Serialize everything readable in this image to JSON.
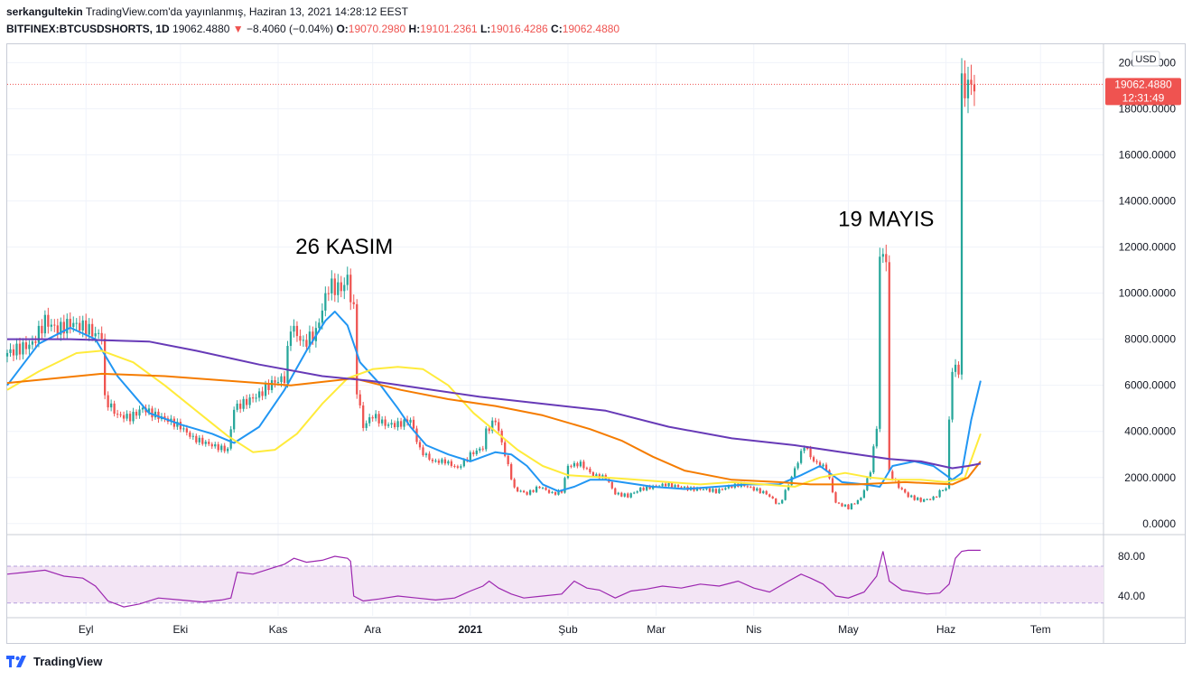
{
  "header": {
    "author": "serkangultekin",
    "published_text": "TradingView.com'da yayınlanmış, Haziran 13, 2021 14:28:12 EEST",
    "symbol": "BITFINEX:BTCUSDSHORTS, 1D",
    "last": "19062.4880",
    "change_arrow": "▼",
    "change": "−8.4060 (−0.04%)",
    "o_label": "O:",
    "o_value": "19070.2980",
    "h_label": "H:",
    "h_value": "19101.2361",
    "l_label": "L:",
    "l_value": "19016.4286",
    "c_label": "C:",
    "c_value": "19062.4880"
  },
  "footer": {
    "brand": "TradingView"
  },
  "colors": {
    "up": "#26a69a",
    "down": "#ef5350",
    "ma_blue": "#2196f3",
    "ma_yellow": "#ffeb3b",
    "ma_orange": "#f57c00",
    "ma_purple": "#673ab7",
    "rsi_line": "#9c27b0",
    "rsi_band": "#f3e5f5",
    "grid": "#f0f3fa",
    "price_tag": "#ef5350"
  },
  "chart_data": {
    "type": "candlestick",
    "currency_label": "USD",
    "y_ticks": [
      "20000.0000",
      "18000.0000",
      "16000.0000",
      "14000.0000",
      "12000.0000",
      "10000.0000",
      "8000.0000",
      "6000.0000",
      "4000.0000",
      "2000.0000",
      "0.0000"
    ],
    "y_tick_values": [
      20000,
      18000,
      16000,
      14000,
      12000,
      10000,
      8000,
      6000,
      4000,
      2000,
      0
    ],
    "ylim": [
      -400,
      20800
    ],
    "x_labels": [
      {
        "label": "Eyl",
        "day": 25
      },
      {
        "label": "Eki",
        "day": 55
      },
      {
        "label": "Kas",
        "day": 86
      },
      {
        "label": "Ara",
        "day": 116
      },
      {
        "label": "2021",
        "day": 147
      },
      {
        "label": "Şub",
        "day": 178
      },
      {
        "label": "Mar",
        "day": 206
      },
      {
        "label": "Nis",
        "day": 237
      },
      {
        "label": "May",
        "day": 267
      },
      {
        "label": "Haz",
        "day": 298
      },
      {
        "label": "Tem",
        "day": 328
      }
    ],
    "x_range_days": [
      0,
      348
    ],
    "last_price_tag": {
      "price": "19062.4880",
      "countdown": "12:31:49",
      "value": 19062.488
    },
    "annotations": [
      {
        "text": "26 KASIM",
        "day": 107,
        "value": 11700
      },
      {
        "text": "19 MAYIS",
        "day": 279,
        "value": 12900
      }
    ],
    "candle_anchors": [
      [
        0,
        7400
      ],
      [
        4,
        7600
      ],
      [
        8,
        7800
      ],
      [
        12,
        8800
      ],
      [
        16,
        8400
      ],
      [
        20,
        8700
      ],
      [
        25,
        8500
      ],
      [
        28,
        8200
      ],
      [
        31,
        5400
      ],
      [
        35,
        4700
      ],
      [
        39,
        4600
      ],
      [
        43,
        5000
      ],
      [
        47,
        4700
      ],
      [
        51,
        4500
      ],
      [
        55,
        4200
      ],
      [
        59,
        3700
      ],
      [
        63,
        3500
      ],
      [
        67,
        3300
      ],
      [
        70,
        3200
      ],
      [
        72,
        5000
      ],
      [
        76,
        5300
      ],
      [
        80,
        5600
      ],
      [
        84,
        6100
      ],
      [
        88,
        6300
      ],
      [
        90,
        8600
      ],
      [
        94,
        7800
      ],
      [
        98,
        8300
      ],
      [
        102,
        10300
      ],
      [
        106,
        10200
      ],
      [
        108,
        10600
      ],
      [
        110,
        9200
      ],
      [
        111,
        5800
      ],
      [
        113,
        4200
      ],
      [
        116,
        4700
      ],
      [
        120,
        4300
      ],
      [
        124,
        4300
      ],
      [
        128,
        4500
      ],
      [
        131,
        3200
      ],
      [
        135,
        2700
      ],
      [
        139,
        2700
      ],
      [
        143,
        2400
      ],
      [
        147,
        3000
      ],
      [
        151,
        3300
      ],
      [
        152,
        4000
      ],
      [
        155,
        4500
      ],
      [
        158,
        3000
      ],
      [
        161,
        1500
      ],
      [
        165,
        1300
      ],
      [
        169,
        1600
      ],
      [
        173,
        1300
      ],
      [
        176,
        1400
      ],
      [
        178,
        2500
      ],
      [
        182,
        2600
      ],
      [
        186,
        2100
      ],
      [
        190,
        2000
      ],
      [
        193,
        1300
      ],
      [
        197,
        1200
      ],
      [
        201,
        1500
      ],
      [
        205,
        1600
      ],
      [
        209,
        1700
      ],
      [
        213,
        1600
      ],
      [
        217,
        1500
      ],
      [
        221,
        1500
      ],
      [
        225,
        1400
      ],
      [
        229,
        1600
      ],
      [
        233,
        1700
      ],
      [
        237,
        1500
      ],
      [
        241,
        1300
      ],
      [
        245,
        800
      ],
      [
        248,
        1700
      ],
      [
        251,
        2700
      ],
      [
        253,
        3400
      ],
      [
        256,
        2700
      ],
      [
        260,
        2400
      ],
      [
        263,
        900
      ],
      [
        267,
        700
      ],
      [
        271,
        1100
      ],
      [
        274,
        2300
      ],
      [
        276,
        4200
      ],
      [
        277,
        11500
      ],
      [
        278,
        11600
      ],
      [
        279,
        11600
      ],
      [
        280,
        2200
      ],
      [
        283,
        1600
      ],
      [
        286,
        1200
      ],
      [
        290,
        1000
      ],
      [
        294,
        1100
      ],
      [
        297,
        1500
      ],
      [
        299,
        4500
      ],
      [
        300,
        6700
      ],
      [
        302,
        6700
      ],
      [
        303,
        18900
      ],
      [
        305,
        19000
      ],
      [
        307,
        19062
      ]
    ],
    "series": [
      {
        "name": "MA short",
        "color": "#2196f3",
        "points": [
          [
            0,
            6000
          ],
          [
            10,
            7800
          ],
          [
            20,
            8500
          ],
          [
            28,
            8000
          ],
          [
            35,
            6400
          ],
          [
            45,
            4800
          ],
          [
            55,
            4300
          ],
          [
            65,
            3900
          ],
          [
            72,
            3500
          ],
          [
            80,
            4200
          ],
          [
            88,
            5800
          ],
          [
            95,
            7500
          ],
          [
            101,
            8800
          ],
          [
            104,
            9200
          ],
          [
            108,
            8600
          ],
          [
            112,
            7000
          ],
          [
            118,
            6100
          ],
          [
            124,
            5000
          ],
          [
            128,
            4200
          ],
          [
            133,
            3400
          ],
          [
            140,
            3000
          ],
          [
            147,
            2700
          ],
          [
            155,
            3100
          ],
          [
            160,
            3000
          ],
          [
            165,
            2500
          ],
          [
            170,
            1700
          ],
          [
            175,
            1400
          ],
          [
            180,
            1600
          ],
          [
            185,
            1900
          ],
          [
            190,
            1900
          ],
          [
            195,
            1800
          ],
          [
            205,
            1600
          ],
          [
            215,
            1500
          ],
          [
            225,
            1600
          ],
          [
            235,
            1700
          ],
          [
            245,
            1700
          ],
          [
            252,
            2100
          ],
          [
            258,
            2500
          ],
          [
            265,
            1800
          ],
          [
            272,
            1700
          ],
          [
            277,
            1600
          ],
          [
            281,
            2500
          ],
          [
            288,
            2700
          ],
          [
            294,
            2500
          ],
          [
            300,
            1900
          ],
          [
            303,
            2200
          ],
          [
            306,
            4500
          ],
          [
            309,
            6200
          ]
        ]
      },
      {
        "name": "MA mid",
        "color": "#ffeb3b",
        "points": [
          [
            0,
            5800
          ],
          [
            10,
            6600
          ],
          [
            22,
            7400
          ],
          [
            30,
            7500
          ],
          [
            40,
            7000
          ],
          [
            50,
            6000
          ],
          [
            60,
            4900
          ],
          [
            70,
            3800
          ],
          [
            78,
            3100
          ],
          [
            85,
            3200
          ],
          [
            92,
            3900
          ],
          [
            100,
            5200
          ],
          [
            108,
            6300
          ],
          [
            116,
            6700
          ],
          [
            124,
            6800
          ],
          [
            132,
            6700
          ],
          [
            140,
            6000
          ],
          [
            148,
            4800
          ],
          [
            155,
            4000
          ],
          [
            162,
            3200
          ],
          [
            170,
            2500
          ],
          [
            178,
            2100
          ],
          [
            190,
            2000
          ],
          [
            200,
            1900
          ],
          [
            210,
            1800
          ],
          [
            220,
            1700
          ],
          [
            230,
            1800
          ],
          [
            240,
            1700
          ],
          [
            250,
            1600
          ],
          [
            258,
            2000
          ],
          [
            266,
            2200
          ],
          [
            274,
            2000
          ],
          [
            281,
            1900
          ],
          [
            290,
            1900
          ],
          [
            298,
            1800
          ],
          [
            304,
            2000
          ],
          [
            309,
            3900
          ]
        ]
      },
      {
        "name": "MA long",
        "color": "#f57c00",
        "points": [
          [
            0,
            6100
          ],
          [
            15,
            6300
          ],
          [
            30,
            6500
          ],
          [
            50,
            6400
          ],
          [
            70,
            6200
          ],
          [
            90,
            6000
          ],
          [
            110,
            6300
          ],
          [
            125,
            5800
          ],
          [
            140,
            5400
          ],
          [
            155,
            5100
          ],
          [
            170,
            4700
          ],
          [
            185,
            4100
          ],
          [
            195,
            3600
          ],
          [
            205,
            2900
          ],
          [
            215,
            2300
          ],
          [
            230,
            1900
          ],
          [
            245,
            1800
          ],
          [
            255,
            1700
          ],
          [
            270,
            1700
          ],
          [
            285,
            1800
          ],
          [
            300,
            1700
          ],
          [
            305,
            2000
          ],
          [
            309,
            2700
          ]
        ]
      },
      {
        "name": "MA very long",
        "color": "#673ab7",
        "points": [
          [
            0,
            8000
          ],
          [
            20,
            8000
          ],
          [
            45,
            7900
          ],
          [
            60,
            7500
          ],
          [
            80,
            6900
          ],
          [
            100,
            6400
          ],
          [
            115,
            6200
          ],
          [
            130,
            5900
          ],
          [
            150,
            5500
          ],
          [
            170,
            5200
          ],
          [
            190,
            4900
          ],
          [
            210,
            4200
          ],
          [
            230,
            3700
          ],
          [
            250,
            3400
          ],
          [
            265,
            3100
          ],
          [
            280,
            2800
          ],
          [
            290,
            2700
          ],
          [
            300,
            2400
          ],
          [
            305,
            2500
          ],
          [
            309,
            2600
          ]
        ]
      }
    ],
    "rsi": {
      "y_ticks": [
        "80.00",
        "40.00"
      ],
      "y_tick_values": [
        80,
        40
      ],
      "band": [
        33,
        70
      ],
      "ylim": [
        20,
        100
      ],
      "points": [
        [
          0,
          62
        ],
        [
          6,
          64
        ],
        [
          12,
          66
        ],
        [
          18,
          60
        ],
        [
          24,
          58
        ],
        [
          28,
          50
        ],
        [
          32,
          35
        ],
        [
          37,
          29
        ],
        [
          42,
          32
        ],
        [
          48,
          38
        ],
        [
          55,
          36
        ],
        [
          62,
          34
        ],
        [
          68,
          36
        ],
        [
          71,
          38
        ],
        [
          73,
          64
        ],
        [
          78,
          62
        ],
        [
          84,
          68
        ],
        [
          88,
          72
        ],
        [
          91,
          78
        ],
        [
          95,
          74
        ],
        [
          100,
          76
        ],
        [
          104,
          80
        ],
        [
          108,
          78
        ],
        [
          109,
          75
        ],
        [
          110,
          40
        ],
        [
          113,
          35
        ],
        [
          118,
          37
        ],
        [
          124,
          40
        ],
        [
          130,
          38
        ],
        [
          136,
          36
        ],
        [
          142,
          38
        ],
        [
          147,
          45
        ],
        [
          151,
          50
        ],
        [
          153,
          55
        ],
        [
          156,
          48
        ],
        [
          160,
          42
        ],
        [
          164,
          38
        ],
        [
          170,
          40
        ],
        [
          176,
          42
        ],
        [
          180,
          55
        ],
        [
          184,
          48
        ],
        [
          188,
          46
        ],
        [
          193,
          38
        ],
        [
          198,
          45
        ],
        [
          203,
          47
        ],
        [
          208,
          50
        ],
        [
          214,
          48
        ],
        [
          220,
          52
        ],
        [
          226,
          50
        ],
        [
          232,
          55
        ],
        [
          237,
          48
        ],
        [
          242,
          44
        ],
        [
          248,
          55
        ],
        [
          252,
          62
        ],
        [
          255,
          58
        ],
        [
          259,
          52
        ],
        [
          263,
          40
        ],
        [
          267,
          38
        ],
        [
          272,
          44
        ],
        [
          276,
          60
        ],
        [
          278,
          85
        ],
        [
          280,
          55
        ],
        [
          284,
          46
        ],
        [
          288,
          44
        ],
        [
          292,
          42
        ],
        [
          296,
          43
        ],
        [
          299,
          52
        ],
        [
          301,
          78
        ],
        [
          303,
          85
        ],
        [
          305,
          86
        ],
        [
          309,
          86
        ]
      ]
    }
  }
}
